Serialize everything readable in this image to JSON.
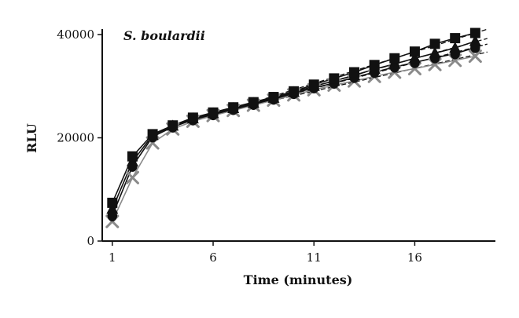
{
  "chart_data": {
    "type": "scatter",
    "annotation": "S. boulardii",
    "xlabel": "Time (minutes)",
    "ylabel": "RLU",
    "xlim": [
      0.5,
      20
    ],
    "ylim": [
      0,
      40000
    ],
    "xticks": [
      1,
      6,
      11,
      16
    ],
    "yticks": [
      0,
      20000,
      40000
    ],
    "xtick_labels": [
      "1",
      "6",
      "11",
      "16"
    ],
    "ytick_labels": [
      "0",
      "20000",
      "40000"
    ],
    "grid": false,
    "x": [
      1,
      2,
      3,
      4,
      5,
      6,
      7,
      8,
      9,
      10,
      11,
      12,
      13,
      14,
      15,
      16,
      17,
      18,
      19
    ],
    "series": [
      {
        "marker": "square",
        "color": "#111111",
        "trendline": true,
        "values": [
          7400,
          16400,
          20700,
          22400,
          23900,
          24900,
          25900,
          26900,
          27900,
          29000,
          30300,
          31500,
          32700,
          34100,
          35400,
          36700,
          38200,
          39300,
          40300
        ]
      },
      {
        "marker": "triangle",
        "color": "#111111",
        "trendline": true,
        "values": [
          6200,
          15400,
          20500,
          22300,
          23700,
          24700,
          25700,
          26700,
          27700,
          28800,
          30000,
          31000,
          32100,
          33300,
          34300,
          35400,
          36400,
          37400,
          38700
        ]
      },
      {
        "marker": "circle",
        "color": "#111111",
        "trendline": true,
        "values": [
          4900,
          14500,
          20200,
          22100,
          23500,
          24500,
          25500,
          26500,
          27500,
          28600,
          29700,
          30600,
          31700,
          32700,
          33700,
          34600,
          35500,
          36300,
          37500
        ]
      },
      {
        "marker": "x",
        "color": "#8a8a8a",
        "trendline": true,
        "values": [
          3800,
          12300,
          19000,
          21700,
          23200,
          24300,
          25300,
          26300,
          27300,
          28300,
          29300,
          30200,
          31000,
          31900,
          32700,
          33400,
          34200,
          35000,
          35800
        ]
      }
    ]
  }
}
